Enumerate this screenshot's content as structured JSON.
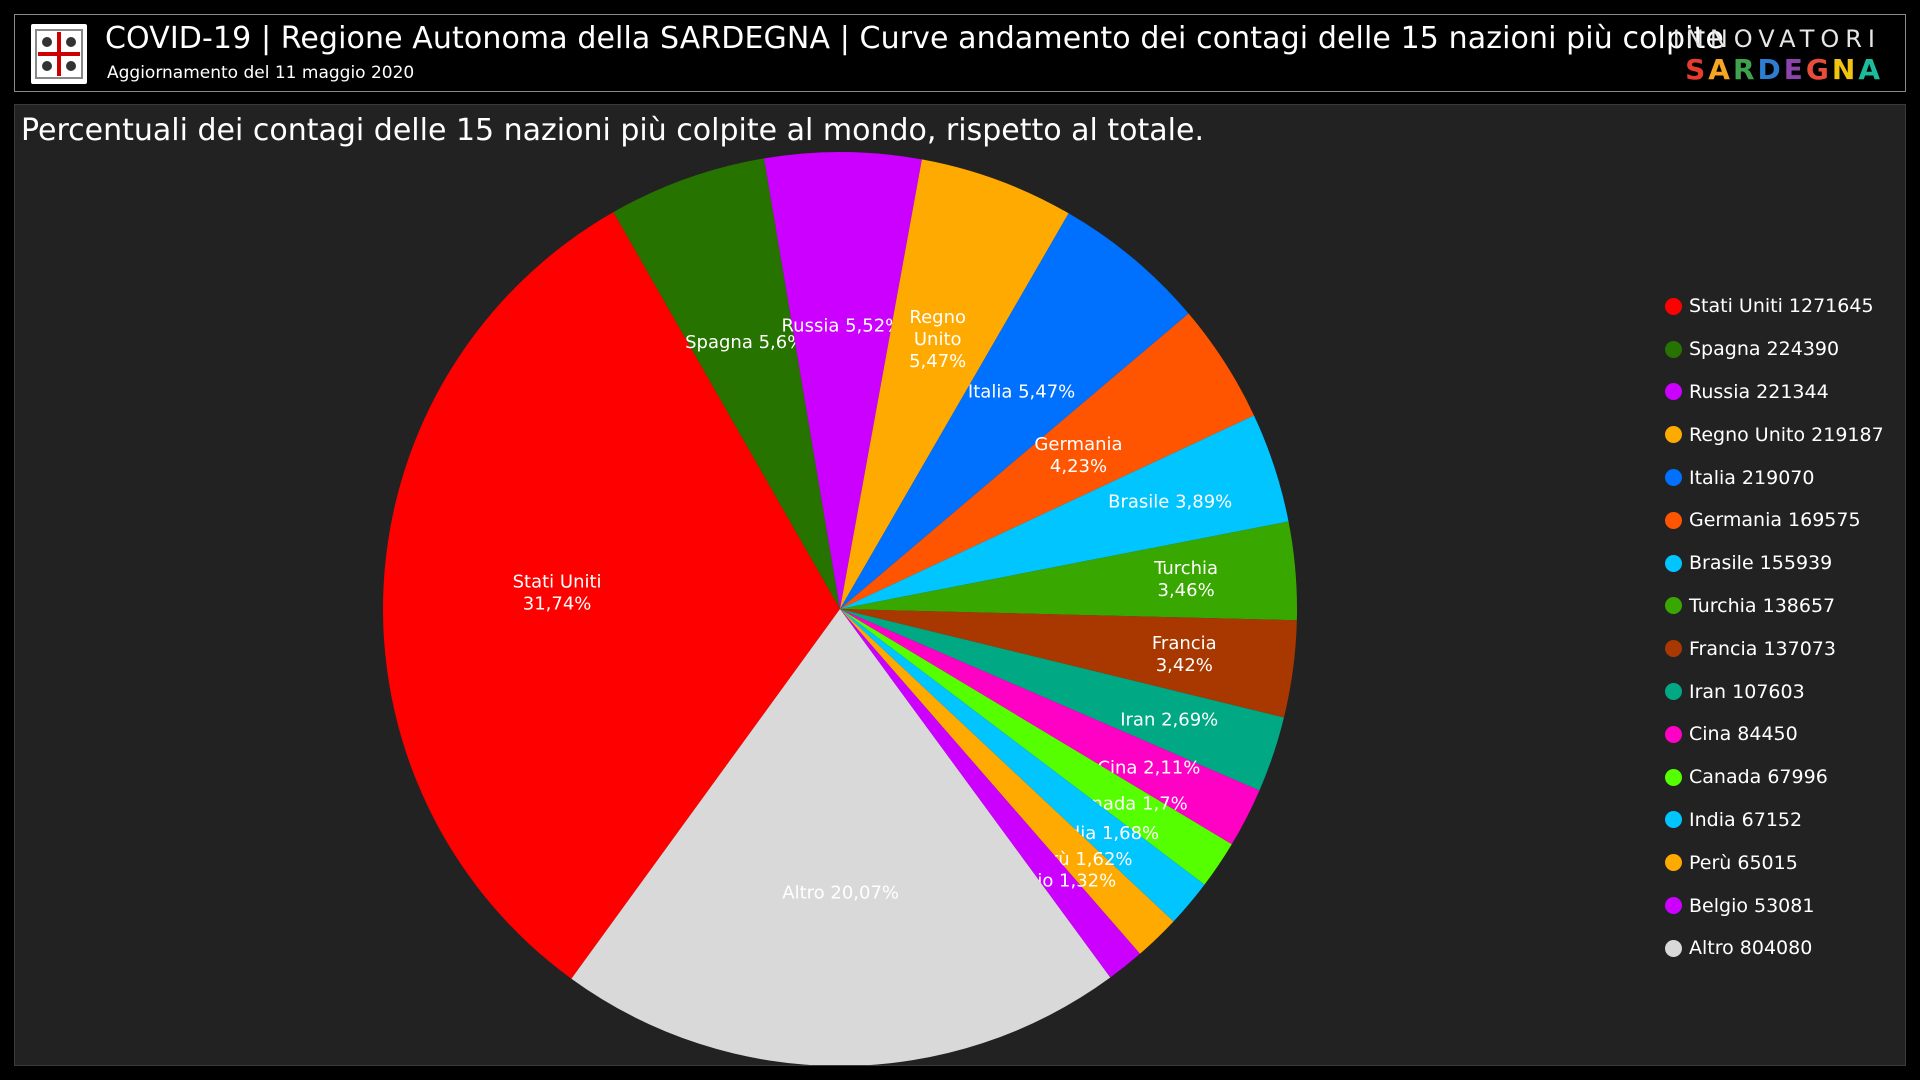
{
  "header": {
    "title": "COVID-19 | Regione Autonoma della SARDEGNA | Curve andamento dei contagi delle 15 nazioni più colpite",
    "subtitle": "Aggiornamento del 11 maggio 2020",
    "brand_top": "INNOVATORI",
    "brand_bottom": "SARDEGNA",
    "brand_colors": [
      "#e63c2f",
      "#f5a623",
      "#3fa34d",
      "#2d7dd2",
      "#8e44ad",
      "#e74c3c",
      "#f1c40f",
      "#1abc9c"
    ]
  },
  "chart_data": {
    "type": "pie",
    "title": "Percentuali dei contagi delle 15 nazioni più colpite al mondo, rispetto al totale.",
    "legend_position": "right",
    "slices": [
      {
        "name": "Stati Uniti",
        "value": 1271645,
        "percent_label": "31,74%",
        "color": "#ff0000"
      },
      {
        "name": "Spagna",
        "value": 224390,
        "percent_label": "5,6%",
        "color": "#267300"
      },
      {
        "name": "Russia",
        "value": 221344,
        "percent_label": "5,52%",
        "color": "#cc00ff"
      },
      {
        "name": "Regno Unito",
        "value": 219187,
        "percent_label": "5,47%",
        "color": "#ffaa00"
      },
      {
        "name": "Italia",
        "value": 219070,
        "percent_label": "5,47%",
        "color": "#0070ff"
      },
      {
        "name": "Germania",
        "value": 169575,
        "percent_label": "4,23%",
        "color": "#ff5500"
      },
      {
        "name": "Brasile",
        "value": 155939,
        "percent_label": "3,89%",
        "color": "#00c5ff"
      },
      {
        "name": "Turchia",
        "value": 138657,
        "percent_label": "3,46%",
        "color": "#38a800"
      },
      {
        "name": "Francia",
        "value": 137073,
        "percent_label": "3,42%",
        "color": "#a83800"
      },
      {
        "name": "Iran",
        "value": 107603,
        "percent_label": "2,69%",
        "color": "#00a884"
      },
      {
        "name": "Cina",
        "value": 84450,
        "percent_label": "2,11%",
        "color": "#ff00c5"
      },
      {
        "name": "Canada",
        "value": 67996,
        "percent_label": "1,7%",
        "color": "#55ff00"
      },
      {
        "name": "India",
        "value": 67152,
        "percent_label": "1,68%",
        "color": "#00c5ff"
      },
      {
        "name": "Perù",
        "value": 65015,
        "percent_label": "1,62%",
        "color": "#ffaa00"
      },
      {
        "name": "Belgio",
        "value": 53081,
        "percent_label": "1,32%",
        "color": "#cc00ff"
      },
      {
        "name": "Altro",
        "value": 804080,
        "percent_label": "20,07%",
        "color": "#d9d9d9"
      }
    ]
  }
}
